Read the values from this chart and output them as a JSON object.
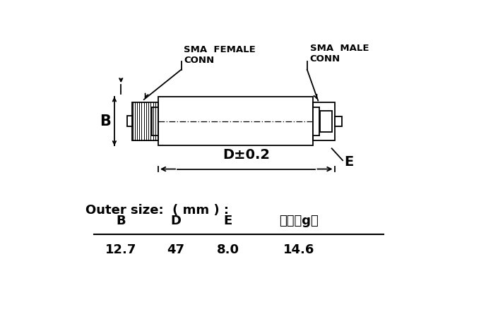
{
  "bg_color": "#ffffff",
  "line_color": "#000000",
  "fig_width": 6.88,
  "fig_height": 4.69,
  "dpi": 100,
  "table_headers": [
    "B",
    "D",
    "E",
    "重量（g）"
  ],
  "table_values": [
    "12.7",
    "47",
    "8.0",
    "14.6"
  ],
  "label_B": "B",
  "label_D": "D±0.2",
  "label_E": "E",
  "annotation_female": "SMA  FEMALE\nCONN",
  "annotation_male": "SMA  MALE\nCONN",
  "outer_size_text": "Outer size:  ( mm ) :"
}
